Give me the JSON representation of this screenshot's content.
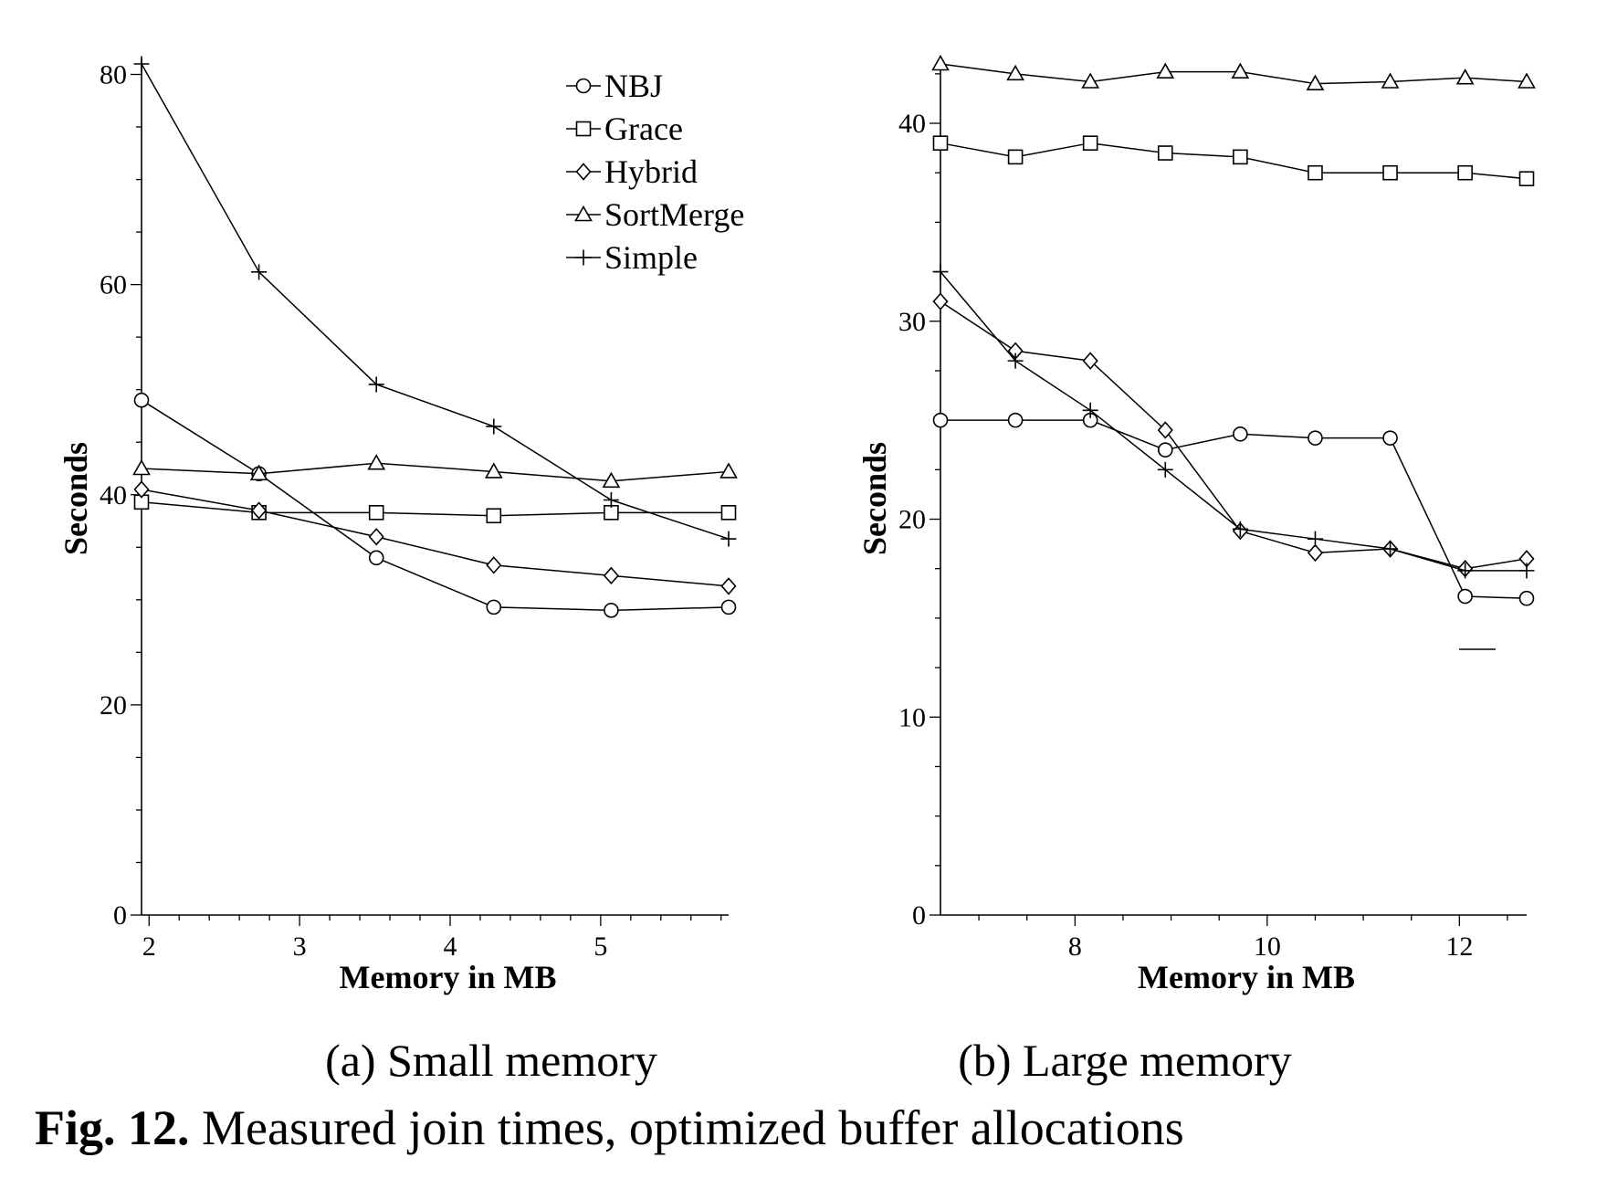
{
  "figure_caption": {
    "number": "Fig. 12.",
    "text": "Measured join times, optimized buffer allocations"
  },
  "chart_data": [
    {
      "type": "line",
      "caption": "(a) Small memory",
      "xlabel": "Memory in MB",
      "ylabel": "Seconds",
      "xlim": [
        1.95,
        5.85
      ],
      "ylim": [
        0,
        81
      ],
      "xticks": [
        2,
        3,
        4,
        5
      ],
      "yticks": [
        0,
        20,
        40,
        60,
        80
      ],
      "grid": false,
      "legend": "top-right",
      "x": [
        1.95,
        2.73,
        3.51,
        4.29,
        5.07,
        5.85
      ],
      "series": [
        {
          "name": "NBJ",
          "marker": "circle",
          "values": [
            49,
            42,
            34,
            29.3,
            29,
            29.3
          ]
        },
        {
          "name": "Grace",
          "marker": "square",
          "values": [
            39.3,
            38.3,
            38.3,
            38,
            38.3,
            38.3
          ]
        },
        {
          "name": "Hybrid",
          "marker": "diamond",
          "values": [
            40.5,
            38.5,
            36,
            33.3,
            32.3,
            31.3
          ]
        },
        {
          "name": "SortMerge",
          "marker": "triangle",
          "values": [
            42.5,
            42,
            43,
            42.2,
            41.3,
            42.2
          ]
        },
        {
          "name": "Simple",
          "marker": "plus",
          "values": [
            81,
            61.2,
            50.5,
            46.5,
            39.5,
            35.8
          ]
        }
      ]
    },
    {
      "type": "line",
      "caption": "(b) Large memory",
      "xlabel": "Memory in MB",
      "ylabel": "Seconds",
      "xlim": [
        6.6,
        12.7
      ],
      "ylim": [
        0,
        43
      ],
      "xticks": [
        8,
        10,
        12
      ],
      "yticks": [
        0,
        10,
        20,
        30,
        40
      ],
      "grid": false,
      "legend": "none",
      "x": [
        6.6,
        7.38,
        8.16,
        8.94,
        9.72,
        10.5,
        11.28,
        12.06,
        12.7
      ],
      "series": [
        {
          "name": "NBJ",
          "marker": "circle",
          "values": [
            25,
            25,
            25,
            23.5,
            24.3,
            24.1,
            24.1,
            16.1,
            16
          ]
        },
        {
          "name": "Grace",
          "marker": "square",
          "values": [
            39,
            38.3,
            39,
            38.5,
            38.3,
            37.5,
            37.5,
            37.5,
            37.2
          ]
        },
        {
          "name": "Hybrid",
          "marker": "diamond",
          "values": [
            31,
            28.5,
            28,
            24.5,
            19.4,
            18.3,
            18.5,
            17.5,
            18
          ]
        },
        {
          "name": "SortMerge",
          "marker": "triangle",
          "values": [
            43,
            42.5,
            42.1,
            42.6,
            42.6,
            42,
            42.1,
            42.3,
            42.1
          ]
        },
        {
          "name": "Simple",
          "marker": "plus",
          "values": [
            32.5,
            28,
            25.5,
            22.5,
            19.5,
            19,
            18.5,
            17.4,
            17.4
          ]
        }
      ]
    }
  ]
}
